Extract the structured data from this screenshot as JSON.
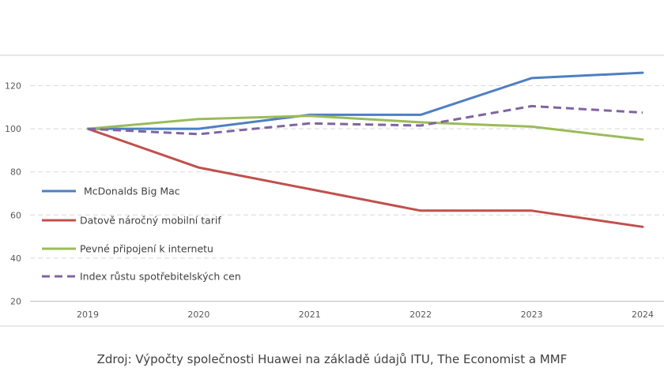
{
  "chart_data": {
    "type": "line",
    "title": "",
    "xlabel": "",
    "ylabel": "",
    "categories": [
      "2019",
      "2020",
      "2021",
      "2022",
      "2023",
      "2024"
    ],
    "ylim": [
      20,
      130
    ],
    "yticks": [
      20,
      40,
      60,
      80,
      100,
      120
    ],
    "grid": true,
    "legend_position": "left",
    "series": [
      {
        "name": "McDonalds Big Mac",
        "values": [
          100,
          100,
          106.5,
          106.5,
          123.5,
          126
        ],
        "color": "#4e7fc2",
        "dash": false
      },
      {
        "name": "Datově náročný mobilní tarif",
        "values": [
          100,
          82,
          72,
          62,
          62,
          54.5
        ],
        "color": "#c0504d",
        "dash": false
      },
      {
        "name": "Pevné připojení k internetu",
        "values": [
          100,
          104.5,
          106,
          103,
          101,
          95
        ],
        "color": "#9bbb59",
        "dash": false
      },
      {
        "name": "Index růstu spotřebitelských cen",
        "values": [
          100,
          97.5,
          102.5,
          101.5,
          110.5,
          107.5
        ],
        "color": "#8064a2",
        "dash": true
      }
    ]
  },
  "source": "Zdroj: Výpočty společnosti Huawei na základě údajů ITU, The Economist a MMF"
}
